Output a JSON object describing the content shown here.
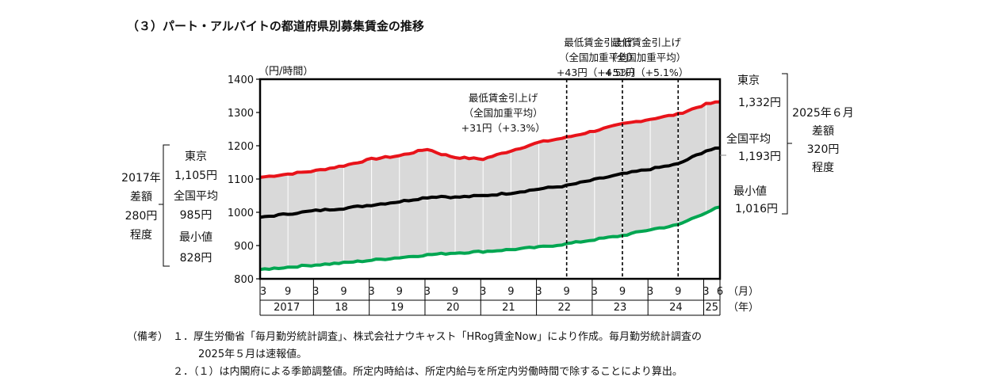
{
  "title": "（３）パート・アルバイトの都道府県別募集賃金の推移",
  "chart_data": {
    "type": "line",
    "ylabel": "（円/時間）",
    "ylim": [
      800,
      1400
    ],
    "yticks": [
      800,
      900,
      1000,
      1100,
      1200,
      1300,
      1400
    ],
    "x_unit_month": "（月）",
    "x_unit_year": "（年）",
    "month_ticks": [
      "3",
      "9",
      "3",
      "9",
      "3",
      "9",
      "3",
      "9",
      "3",
      "9",
      "3",
      "9",
      "3",
      "9",
      "3",
      "9",
      "3",
      "6"
    ],
    "year_labels": [
      "2017",
      "18",
      "19",
      "20",
      "21",
      "22",
      "23",
      "24",
      "25"
    ],
    "x_range": [
      "2017-03",
      "2025-06"
    ],
    "shade_between": [
      "東京",
      "最小値"
    ],
    "series": [
      {
        "name": "東京",
        "color": "#e8131a",
        "x": [
          "2017-03",
          "2017-09",
          "2018-03",
          "2018-09",
          "2019-03",
          "2019-06",
          "2019-09",
          "2020-03",
          "2020-06",
          "2020-09",
          "2021-03",
          "2021-09",
          "2022-03",
          "2022-09",
          "2023-03",
          "2023-09",
          "2024-03",
          "2024-09",
          "2025-03",
          "2025-06"
        ],
        "values": [
          1105,
          1115,
          1125,
          1140,
          1160,
          1165,
          1170,
          1190,
          1175,
          1165,
          1160,
          1185,
          1210,
          1225,
          1245,
          1265,
          1280,
          1295,
          1325,
          1332
        ]
      },
      {
        "name": "全国平均",
        "color": "#000000",
        "x": [
          "2017-03",
          "2017-09",
          "2018-03",
          "2018-09",
          "2019-03",
          "2019-09",
          "2020-03",
          "2020-06",
          "2020-09",
          "2021-03",
          "2021-09",
          "2022-03",
          "2022-09",
          "2023-03",
          "2023-09",
          "2024-03",
          "2024-09",
          "2025-03",
          "2025-06"
        ],
        "values": [
          985,
          995,
          1005,
          1012,
          1022,
          1032,
          1045,
          1048,
          1045,
          1050,
          1058,
          1070,
          1080,
          1098,
          1115,
          1130,
          1145,
          1185,
          1193
        ]
      },
      {
        "name": "最小値",
        "color": "#00a651",
        "x": [
          "2017-03",
          "2017-09",
          "2018-03",
          "2018-09",
          "2019-03",
          "2019-09",
          "2020-03",
          "2020-09",
          "2021-03",
          "2021-09",
          "2022-03",
          "2022-09",
          "2023-03",
          "2023-09",
          "2024-03",
          "2024-09",
          "2025-03",
          "2025-06"
        ],
        "values": [
          828,
          835,
          842,
          848,
          856,
          864,
          872,
          878,
          882,
          888,
          895,
          905,
          918,
          930,
          948,
          962,
          1000,
          1016
        ]
      }
    ],
    "events": [
      {
        "x": "2022-09",
        "lines": [
          "最低賃金引上げ",
          "（全国加重平均）",
          "+31円（+3.3%）"
        ]
      },
      {
        "x": "2023-09",
        "lines": [
          "最低賃金引上げ",
          "（全国加重平均）",
          "+43円（+4.5%）"
        ]
      },
      {
        "x": "2024-09",
        "lines": [
          "最低賃金引上げ",
          "（全国加重平均）",
          "+51円（+5.1%）"
        ]
      }
    ],
    "left_annotation": {
      "head": [
        "2017年",
        "差額",
        "280円",
        "程度"
      ],
      "items": [
        "東京",
        "1,105円",
        "全国平均",
        "985円",
        "最小値",
        "828円"
      ]
    },
    "right_annotation": {
      "head": [
        "2025年６月",
        "差額",
        "320円",
        "程度"
      ],
      "items": [
        "東京",
        "1,332円",
        "全国平均",
        "1,193円",
        "最小値",
        "1,016円"
      ]
    }
  },
  "notes": {
    "prefix": "（備考）",
    "n1a": "１．厚生労働省「毎月勤労統計調査」、株式会社ナウキャスト「HRog賃金Now」により作成。毎月勤労統計調査の",
    "n1b": "2025年５月は速報値。",
    "n2": "２．（１）は内閣府による季節調整値。所定内時給は、所定内給与を所定内労働時間で除することにより算出。"
  }
}
